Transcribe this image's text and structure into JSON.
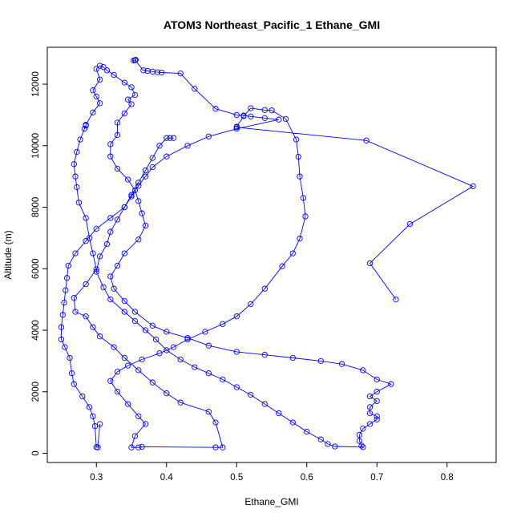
{
  "chart_data": {
    "type": "scatter",
    "title": "ATOM3 Northeast_Pacific_1 Ethane_GMI",
    "xlabel": "Ethane_GMI",
    "ylabel": "Altitude (m)",
    "xlim": [
      0.23,
      0.87
    ],
    "ylim": [
      -300,
      13200
    ],
    "xticks": [
      0.3,
      0.4,
      0.5,
      0.6,
      0.7,
      0.8
    ],
    "xtick_labels": [
      "0.3",
      "0.4",
      "0.5",
      "0.6",
      "0.7",
      "0.8"
    ],
    "yticks": [
      0,
      2000,
      4000,
      6000,
      8000,
      10000,
      12000
    ],
    "ytick_labels": [
      "0",
      "2000",
      "4000",
      "6000",
      "8000",
      "10000",
      "12000"
    ],
    "grid": false,
    "connected_points": true,
    "color": "#0000ff",
    "marker": "open-circle",
    "series": [
      {
        "points": [
          [
            0.727,
            5000
          ],
          [
            0.69,
            6180
          ],
          [
            0.747,
            7450
          ],
          [
            0.837,
            8680
          ],
          [
            0.685,
            10170
          ],
          [
            0.5,
            10600
          ],
          [
            0.5,
            10620
          ],
          [
            0.51,
            10960
          ],
          [
            0.52,
            11220
          ],
          [
            0.54,
            11160
          ],
          [
            0.55,
            11150
          ],
          [
            0.57,
            10870
          ],
          [
            0.585,
            10200
          ],
          [
            0.588,
            9640
          ],
          [
            0.59,
            9000
          ],
          [
            0.595,
            8300
          ],
          [
            0.598,
            7700
          ],
          [
            0.59,
            6980
          ],
          [
            0.58,
            6500
          ],
          [
            0.565,
            6080
          ],
          [
            0.54,
            5350
          ],
          [
            0.52,
            4850
          ],
          [
            0.5,
            4450
          ],
          [
            0.48,
            4200
          ],
          [
            0.455,
            3950
          ],
          [
            0.43,
            3700
          ],
          [
            0.41,
            3450
          ],
          [
            0.39,
            3250
          ],
          [
            0.365,
            3050
          ],
          [
            0.345,
            2850
          ],
          [
            0.33,
            2650
          ],
          [
            0.32,
            2350
          ],
          [
            0.33,
            2000
          ],
          [
            0.345,
            1600
          ],
          [
            0.36,
            1200
          ],
          [
            0.37,
            950
          ],
          [
            0.355,
            560
          ],
          [
            0.35,
            190
          ],
          [
            0.36,
            190
          ],
          [
            0.365,
            210
          ],
          [
            0.47,
            190
          ],
          [
            0.48,
            190
          ],
          [
            0.47,
            1000
          ],
          [
            0.46,
            1350
          ],
          [
            0.42,
            1650
          ],
          [
            0.4,
            1950
          ],
          [
            0.38,
            2300
          ],
          [
            0.36,
            2700
          ],
          [
            0.34,
            3100
          ],
          [
            0.325,
            3450
          ],
          [
            0.305,
            3800
          ],
          [
            0.295,
            4100
          ],
          [
            0.285,
            4450
          ],
          [
            0.27,
            4600
          ],
          [
            0.268,
            5050
          ],
          [
            0.285,
            5500
          ],
          [
            0.3,
            5980
          ],
          [
            0.295,
            6500
          ],
          [
            0.29,
            7000
          ],
          [
            0.285,
            7650
          ],
          [
            0.275,
            8150
          ],
          [
            0.272,
            8650
          ],
          [
            0.27,
            9000
          ],
          [
            0.268,
            9400
          ],
          [
            0.272,
            9800
          ],
          [
            0.277,
            10200
          ],
          [
            0.283,
            10550
          ],
          [
            0.285,
            10650
          ],
          [
            0.285,
            10680
          ],
          [
            0.295,
            11080
          ],
          [
            0.305,
            11380
          ],
          [
            0.3,
            11600
          ],
          [
            0.295,
            11800
          ],
          [
            0.305,
            12150
          ],
          [
            0.3,
            12500
          ],
          [
            0.305,
            12600
          ],
          [
            0.31,
            12560
          ],
          [
            0.315,
            12450
          ],
          [
            0.325,
            12300
          ],
          [
            0.34,
            12050
          ],
          [
            0.35,
            11900
          ],
          [
            0.355,
            11650
          ],
          [
            0.345,
            11500
          ],
          [
            0.35,
            11350
          ],
          [
            0.34,
            11050
          ],
          [
            0.33,
            10750
          ],
          [
            0.33,
            10350
          ],
          [
            0.32,
            10050
          ],
          [
            0.32,
            9650
          ],
          [
            0.33,
            9250
          ],
          [
            0.345,
            8900
          ],
          [
            0.355,
            8550
          ],
          [
            0.36,
            8200
          ],
          [
            0.365,
            7800
          ],
          [
            0.37,
            7400
          ],
          [
            0.36,
            6950
          ],
          [
            0.34,
            6500
          ],
          [
            0.33,
            6100
          ],
          [
            0.32,
            5750
          ],
          [
            0.325,
            5350
          ],
          [
            0.34,
            4950
          ],
          [
            0.355,
            4600
          ],
          [
            0.38,
            4150
          ],
          [
            0.4,
            3950
          ],
          [
            0.43,
            3750
          ],
          [
            0.46,
            3500
          ],
          [
            0.5,
            3300
          ],
          [
            0.54,
            3200
          ],
          [
            0.58,
            3100
          ],
          [
            0.62,
            3000
          ],
          [
            0.65,
            2900
          ],
          [
            0.68,
            2700
          ],
          [
            0.7,
            2400
          ],
          [
            0.72,
            2250
          ],
          [
            0.7,
            2000
          ],
          [
            0.69,
            1850
          ],
          [
            0.7,
            1700
          ],
          [
            0.69,
            1500
          ],
          [
            0.69,
            1300
          ],
          [
            0.7,
            1200
          ],
          [
            0.7,
            1100
          ],
          [
            0.69,
            950
          ],
          [
            0.68,
            800
          ],
          [
            0.675,
            600
          ],
          [
            0.675,
            400
          ],
          [
            0.678,
            250
          ],
          [
            0.68,
            200
          ],
          [
            0.64,
            220
          ],
          [
            0.63,
            300
          ],
          [
            0.62,
            450
          ],
          [
            0.6,
            700
          ],
          [
            0.58,
            1000
          ],
          [
            0.56,
            1300
          ],
          [
            0.54,
            1600
          ],
          [
            0.52,
            1900
          ],
          [
            0.5,
            2150
          ],
          [
            0.48,
            2400
          ],
          [
            0.46,
            2600
          ],
          [
            0.44,
            2800
          ],
          [
            0.42,
            3050
          ],
          [
            0.4,
            3350
          ],
          [
            0.385,
            3700
          ],
          [
            0.37,
            4000
          ],
          [
            0.355,
            4300
          ],
          [
            0.34,
            4600
          ],
          [
            0.32,
            5000
          ],
          [
            0.31,
            5400
          ],
          [
            0.3,
            5900
          ],
          [
            0.305,
            6400
          ],
          [
            0.315,
            6800
          ],
          [
            0.32,
            7200
          ],
          [
            0.33,
            7600
          ],
          [
            0.34,
            8000
          ],
          [
            0.35,
            8400
          ],
          [
            0.36,
            8800
          ],
          [
            0.37,
            9200
          ],
          [
            0.38,
            9600
          ],
          [
            0.39,
            10000
          ],
          [
            0.4,
            10250
          ],
          [
            0.405,
            10250
          ],
          [
            0.41,
            10250
          ]
        ]
      },
      {
        "points": [
          [
            0.356,
            12790
          ],
          [
            0.353,
            12770
          ],
          [
            0.355,
            12780
          ],
          [
            0.367,
            12450
          ],
          [
            0.373,
            12430
          ],
          [
            0.38,
            12410
          ],
          [
            0.387,
            12390
          ],
          [
            0.393,
            12380
          ],
          [
            0.42,
            12350
          ],
          [
            0.44,
            11850
          ],
          [
            0.47,
            11200
          ],
          [
            0.5,
            11000
          ],
          [
            0.51,
            10980
          ],
          [
            0.52,
            10950
          ],
          [
            0.54,
            10900
          ],
          [
            0.56,
            10850
          ],
          [
            0.5,
            10550
          ],
          [
            0.46,
            10300
          ],
          [
            0.43,
            10000
          ],
          [
            0.4,
            9650
          ],
          [
            0.38,
            9300
          ],
          [
            0.37,
            9000
          ],
          [
            0.36,
            8700
          ],
          [
            0.35,
            8350
          ],
          [
            0.34,
            8000
          ],
          [
            0.32,
            7650
          ],
          [
            0.3,
            7300
          ],
          [
            0.285,
            6900
          ],
          [
            0.27,
            6500
          ],
          [
            0.26,
            6100
          ],
          [
            0.258,
            5700
          ],
          [
            0.256,
            5300
          ],
          [
            0.254,
            4900
          ],
          [
            0.252,
            4500
          ],
          [
            0.25,
            4100
          ],
          [
            0.25,
            3700
          ],
          [
            0.255,
            3450
          ],
          [
            0.262,
            3100
          ],
          [
            0.265,
            2600
          ],
          [
            0.268,
            2250
          ],
          [
            0.28,
            1850
          ],
          [
            0.29,
            1500
          ],
          [
            0.295,
            1200
          ],
          [
            0.298,
            880
          ],
          [
            0.3,
            200
          ],
          [
            0.302,
            190
          ],
          [
            0.305,
            950
          ]
        ]
      }
    ]
  }
}
